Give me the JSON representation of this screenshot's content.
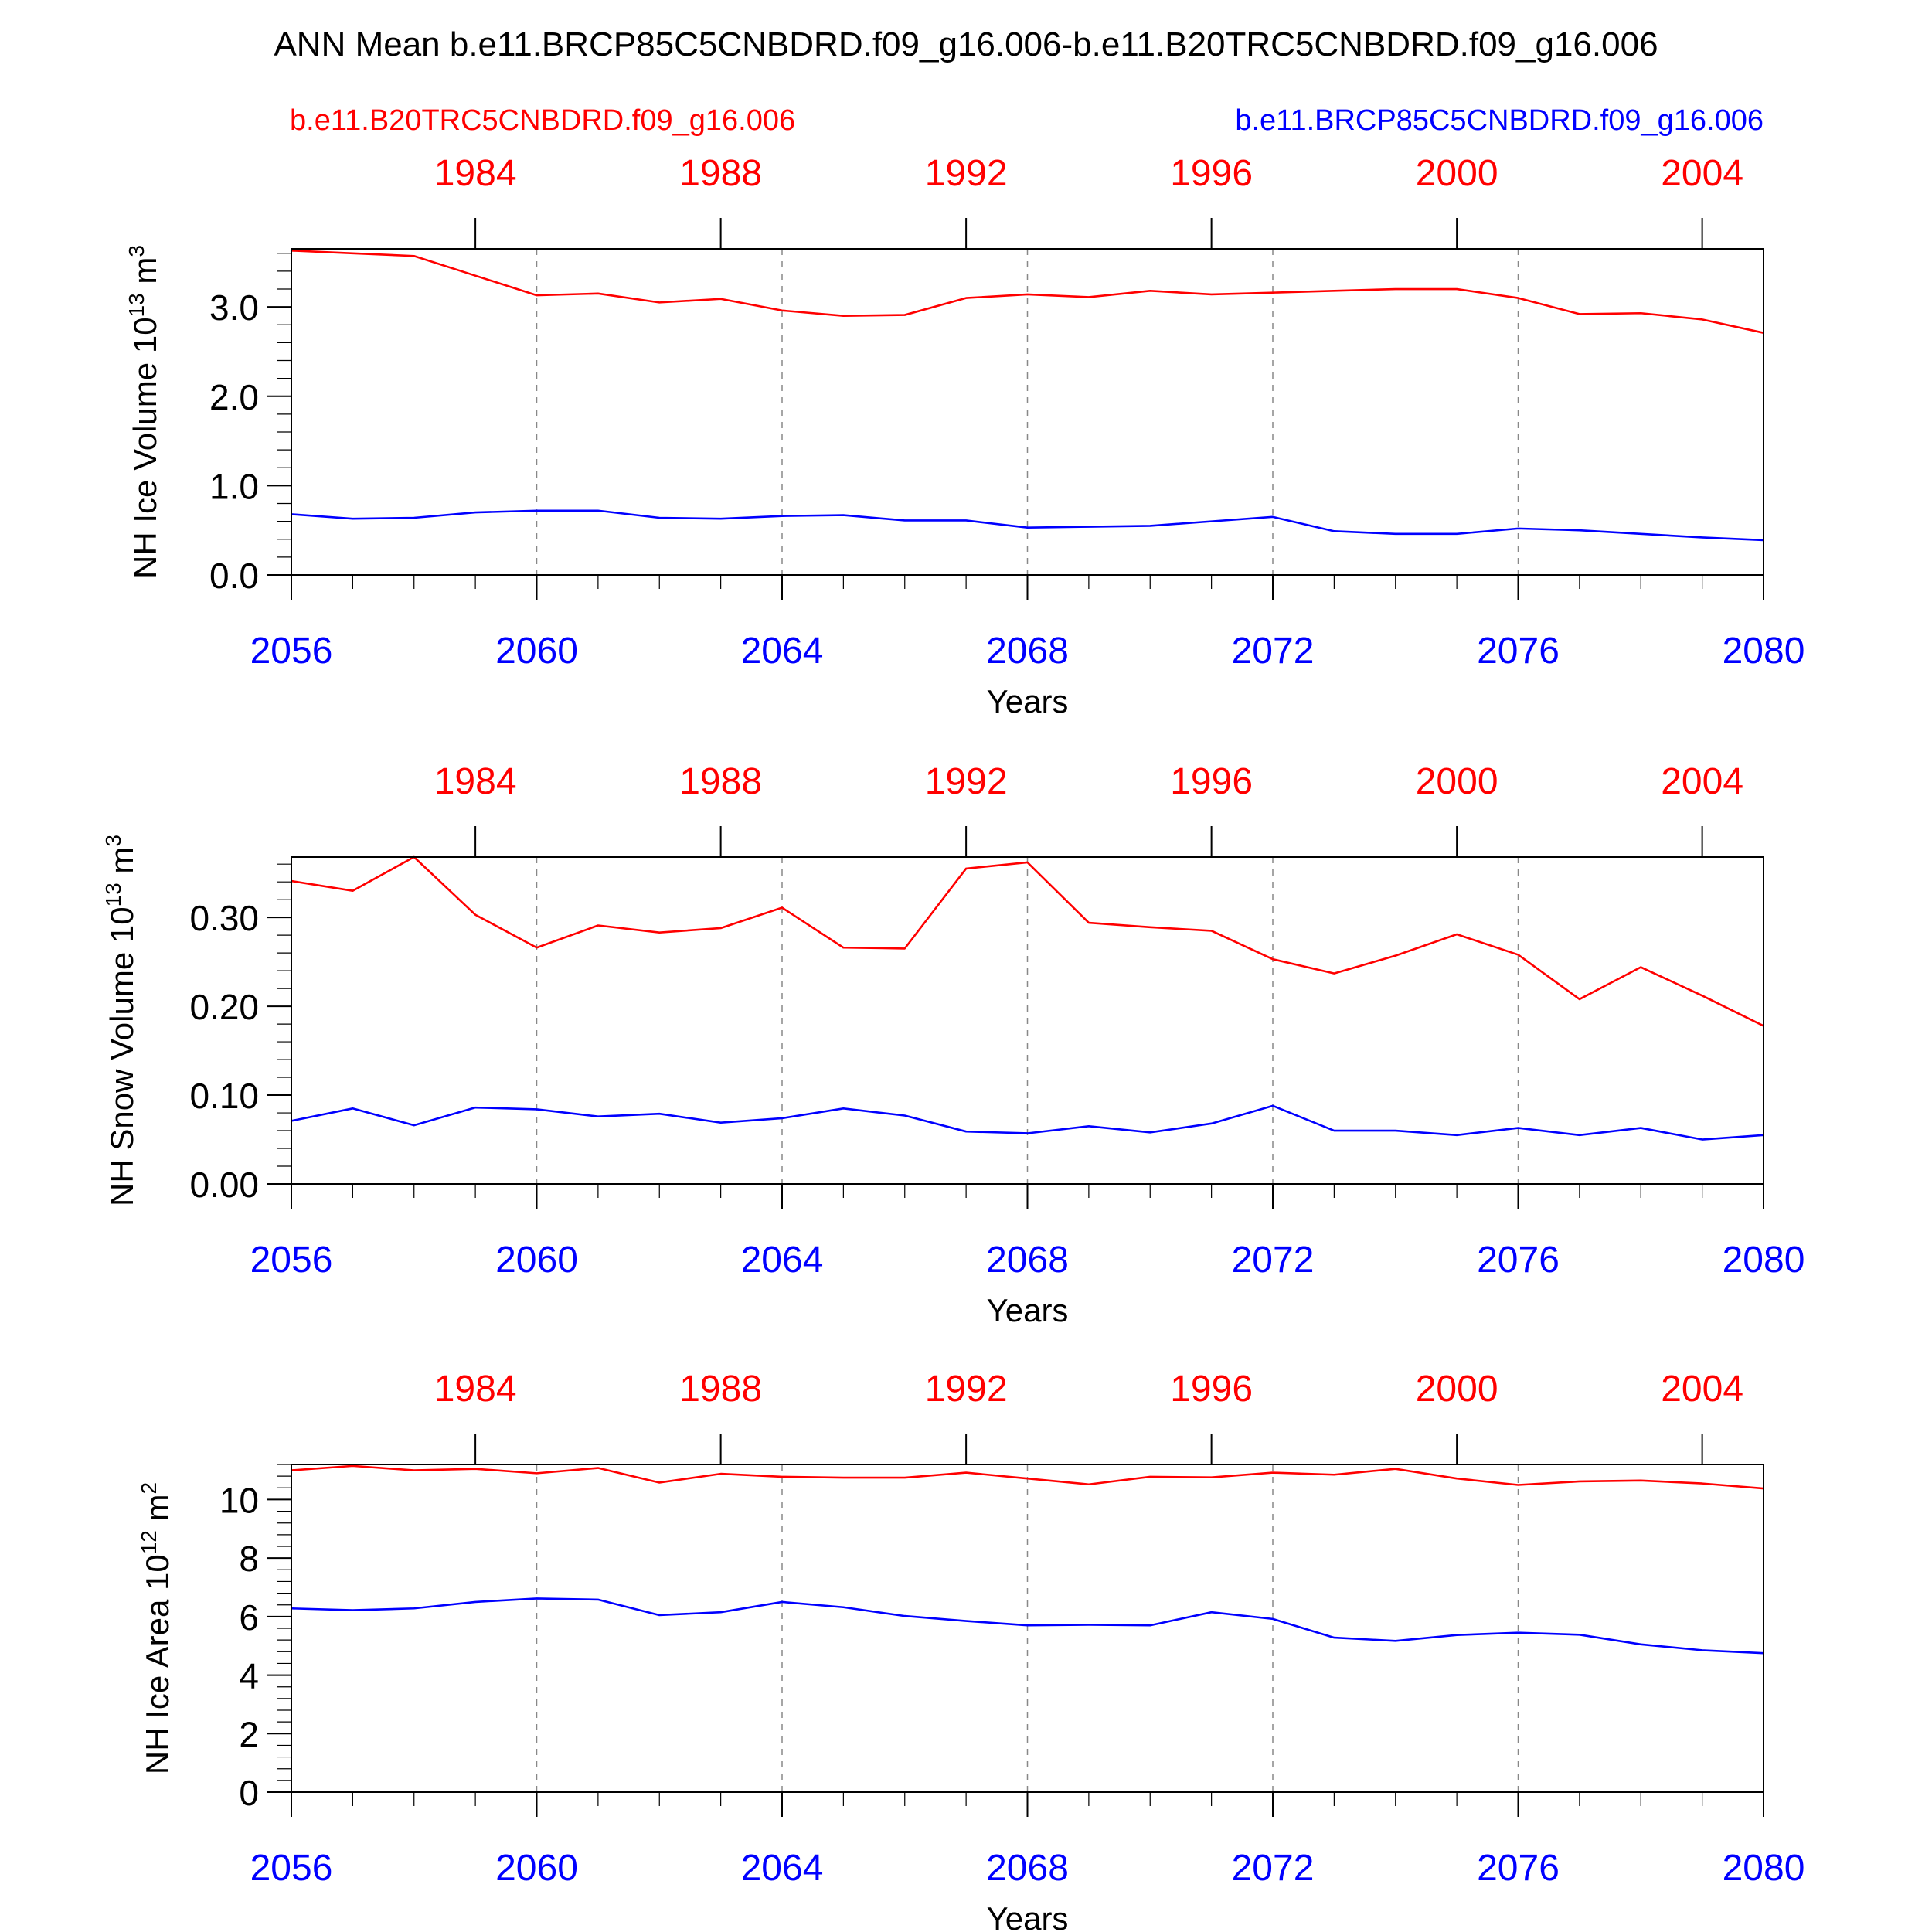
{
  "figure": {
    "title": "ANN Mean b.e11.BRCP85C5CNBDRD.f09_g16.006-b.e11.B20TRC5CNBDRD.f09_g16.006",
    "legend_left": "b.e11.B20TRC5CNBDRD.f09_g16.006",
    "legend_right": "b.e11.BRCP85C5CNBDRD.f09_g16.006",
    "colors": {
      "red": "#ff0000",
      "blue": "#0000ff",
      "axis": "#000000",
      "grid": "#888888"
    }
  },
  "chart_data": [
    {
      "type": "line",
      "ylabel": "NH Ice Volume 10",
      "ylabel_exp": "13",
      "ylabel_unit": "m",
      "ylabel_unit_exp": "3",
      "xlabel": "Years",
      "ylim": [
        0,
        3.65
      ],
      "yticks": [
        0.0,
        1.0,
        2.0,
        3.0
      ],
      "yticklabels": [
        "0.0",
        "1.0",
        "2.0",
        "3.0"
      ],
      "yminor_step": 0.2,
      "x_bottom": {
        "range": [
          2056,
          2080
        ],
        "ticks": [
          2056,
          2060,
          2064,
          2068,
          2072,
          2076,
          2080
        ],
        "ticklabels": [
          "2056",
          "2060",
          "2064",
          "2068",
          "2072",
          "2076",
          "2080"
        ]
      },
      "x_top": {
        "range": [
          1981,
          2005
        ],
        "ticks": [
          1984,
          1988,
          1992,
          1996,
          2000,
          2004
        ],
        "ticklabels": [
          "1984",
          "1988",
          "1992",
          "1996",
          "2000",
          "2004"
        ]
      },
      "grid_x": [
        2060,
        2064,
        2068,
        2072,
        2076
      ],
      "series": [
        {
          "name": "b.e11.B20TRC5CNBDRD.f09_g16.006",
          "color": "#ff0000",
          "axis": "top",
          "x": [
            1981,
            1982,
            1983,
            1984,
            1985,
            1986,
            1987,
            1988,
            1989,
            1990,
            1991,
            1992,
            1993,
            1994,
            1995,
            1996,
            1997,
            1998,
            1999,
            2000,
            2001,
            2002,
            2003,
            2004,
            2005
          ],
          "values": [
            3.63,
            3.6,
            3.57,
            3.35,
            3.13,
            3.15,
            3.05,
            3.09,
            2.96,
            2.9,
            2.91,
            3.1,
            3.14,
            3.11,
            3.18,
            3.14,
            3.16,
            3.18,
            3.2,
            3.2,
            3.1,
            2.92,
            2.93,
            2.86,
            2.71
          ]
        },
        {
          "name": "b.e11.BRCP85C5CNBDRD.f09_g16.006",
          "color": "#0000ff",
          "axis": "bottom",
          "x": [
            2056,
            2057,
            2058,
            2059,
            2060,
            2061,
            2062,
            2063,
            2064,
            2065,
            2066,
            2067,
            2068,
            2069,
            2070,
            2071,
            2072,
            2073,
            2074,
            2075,
            2076,
            2077,
            2078,
            2079,
            2080
          ],
          "values": [
            0.68,
            0.63,
            0.64,
            0.7,
            0.72,
            0.72,
            0.64,
            0.63,
            0.66,
            0.67,
            0.61,
            0.61,
            0.53,
            0.54,
            0.55,
            0.6,
            0.65,
            0.49,
            0.46,
            0.46,
            0.52,
            0.5,
            0.46,
            0.42,
            0.39
          ]
        }
      ]
    },
    {
      "type": "line",
      "ylabel": "NH Snow Volume 10",
      "ylabel_exp": "13",
      "ylabel_unit": "m",
      "ylabel_unit_exp": "3",
      "xlabel": "Years",
      "ylim": [
        0,
        0.368
      ],
      "yticks": [
        0.0,
        0.1,
        0.2,
        0.3
      ],
      "yticklabels": [
        "0.00",
        "0.10",
        "0.20",
        "0.30"
      ],
      "yminor_step": 0.02,
      "x_bottom": {
        "range": [
          2056,
          2080
        ],
        "ticks": [
          2056,
          2060,
          2064,
          2068,
          2072,
          2076,
          2080
        ],
        "ticklabels": [
          "2056",
          "2060",
          "2064",
          "2068",
          "2072",
          "2076",
          "2080"
        ]
      },
      "x_top": {
        "range": [
          1981,
          2005
        ],
        "ticks": [
          1984,
          1988,
          1992,
          1996,
          2000,
          2004
        ],
        "ticklabels": [
          "1984",
          "1988",
          "1992",
          "1996",
          "2000",
          "2004"
        ]
      },
      "grid_x": [
        2060,
        2064,
        2068,
        2072,
        2076
      ],
      "series": [
        {
          "name": "b.e11.B20TRC5CNBDRD.f09_g16.006",
          "color": "#ff0000",
          "axis": "top",
          "x": [
            1981,
            1982,
            1983,
            1984,
            1985,
            1986,
            1987,
            1988,
            1989,
            1990,
            1991,
            1992,
            1993,
            1994,
            1995,
            1996,
            1997,
            1998,
            1999,
            2000,
            2001,
            2002,
            2003,
            2004,
            2005
          ],
          "values": [
            0.341,
            0.33,
            0.368,
            0.303,
            0.266,
            0.291,
            0.283,
            0.288,
            0.311,
            0.266,
            0.265,
            0.355,
            0.362,
            0.294,
            0.289,
            0.285,
            0.253,
            0.237,
            0.257,
            0.281,
            0.258,
            0.208,
            0.244,
            0.212,
            0.178
          ]
        },
        {
          "name": "b.e11.BRCP85C5CNBDRD.f09_g16.006",
          "color": "#0000ff",
          "axis": "bottom",
          "x": [
            2056,
            2057,
            2058,
            2059,
            2060,
            2061,
            2062,
            2063,
            2064,
            2065,
            2066,
            2067,
            2068,
            2069,
            2070,
            2071,
            2072,
            2073,
            2074,
            2075,
            2076,
            2077,
            2078,
            2079,
            2080
          ],
          "values": [
            0.071,
            0.085,
            0.066,
            0.086,
            0.084,
            0.076,
            0.079,
            0.069,
            0.074,
            0.085,
            0.077,
            0.059,
            0.057,
            0.065,
            0.058,
            0.068,
            0.088,
            0.06,
            0.06,
            0.055,
            0.063,
            0.055,
            0.063,
            0.05,
            0.055
          ]
        }
      ]
    },
    {
      "type": "line",
      "ylabel": "NH Ice Area 10",
      "ylabel_exp": "12",
      "ylabel_unit": "m",
      "ylabel_unit_exp": "2",
      "xlabel": "Years",
      "ylim": [
        0,
        11.2
      ],
      "yticks": [
        0,
        2,
        4,
        6,
        8,
        10
      ],
      "yticklabels": [
        "0",
        "2",
        "4",
        "6",
        "8",
        "10"
      ],
      "yminor_step": 0.4,
      "x_bottom": {
        "range": [
          2056,
          2080
        ],
        "ticks": [
          2056,
          2060,
          2064,
          2068,
          2072,
          2076,
          2080
        ],
        "ticklabels": [
          "2056",
          "2060",
          "2064",
          "2068",
          "2072",
          "2076",
          "2080"
        ]
      },
      "x_top": {
        "range": [
          1981,
          2005
        ],
        "ticks": [
          1984,
          1988,
          1992,
          1996,
          2000,
          2004
        ],
        "ticklabels": [
          "1984",
          "1988",
          "1992",
          "1996",
          "2000",
          "2004"
        ]
      },
      "grid_x": [
        2060,
        2064,
        2068,
        2072,
        2076
      ],
      "series": [
        {
          "name": "b.e11.B20TRC5CNBDRD.f09_g16.006",
          "color": "#ff0000",
          "axis": "top",
          "x": [
            1981,
            1982,
            1983,
            1984,
            1985,
            1986,
            1987,
            1988,
            1989,
            1990,
            1991,
            1992,
            1993,
            1994,
            1995,
            1996,
            1997,
            1998,
            1999,
            2000,
            2001,
            2002,
            2003,
            2004,
            2005
          ],
          "values": [
            11.0,
            11.15,
            11.0,
            11.05,
            10.9,
            11.08,
            10.58,
            10.88,
            10.78,
            10.75,
            10.75,
            10.92,
            10.72,
            10.52,
            10.78,
            10.76,
            10.92,
            10.85,
            11.05,
            10.72,
            10.5,
            10.62,
            10.65,
            10.55,
            10.38
          ]
        },
        {
          "name": "b.e11.BRCP85C5CNBDRD.f09_g16.006",
          "color": "#0000ff",
          "axis": "bottom",
          "x": [
            2056,
            2057,
            2058,
            2059,
            2060,
            2061,
            2062,
            2063,
            2064,
            2065,
            2066,
            2067,
            2068,
            2069,
            2070,
            2071,
            2072,
            2073,
            2074,
            2075,
            2076,
            2077,
            2078,
            2079,
            2080
          ],
          "values": [
            6.28,
            6.22,
            6.28,
            6.5,
            6.62,
            6.58,
            6.05,
            6.15,
            6.5,
            6.32,
            6.02,
            5.85,
            5.7,
            5.72,
            5.7,
            6.15,
            5.92,
            5.28,
            5.17,
            5.37,
            5.45,
            5.38,
            5.05,
            4.85,
            4.75
          ]
        }
      ]
    }
  ]
}
